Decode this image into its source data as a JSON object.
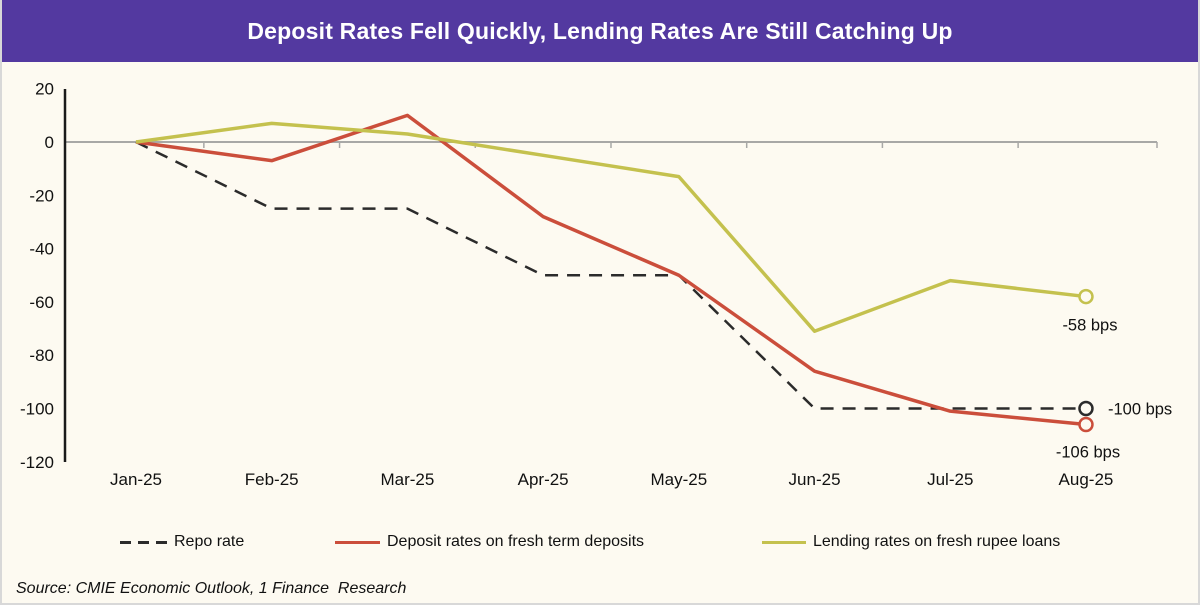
{
  "header": {
    "title": "Deposit Rates Fell Quickly, Lending Rates Are Still Catching Up"
  },
  "colors": {
    "banner_bg": "#5339A0",
    "banner_text": "#FFFFFF",
    "canvas_bg": "#FDFAF1",
    "axis_line": "#1A1A1A",
    "text": "#111111",
    "zero_line": "#A8A8A6",
    "frame_border": "#D8D8D8"
  },
  "chart_data": {
    "type": "line",
    "title": "Deposit Rates Fell Quickly, Lending Rates Are Still Catching Up",
    "unit": "bps (cumulative change)",
    "categories": [
      "Jan-25",
      "Feb-25",
      "Mar-25",
      "Apr-25",
      "May-25",
      "Jun-25",
      "Jul-25",
      "Aug-25"
    ],
    "series": [
      {
        "name": "Repo rate",
        "style": "dashed",
        "color": "#2B2B2B",
        "values": [
          0,
          -25,
          -25,
          -50,
          -50,
          -100,
          -100,
          -100
        ],
        "end_label": "-100 bps"
      },
      {
        "name": "Deposit rates on fresh term deposits",
        "style": "solid",
        "color": "#CB4E3B",
        "values": [
          0,
          -7,
          10,
          -28,
          -50,
          -86,
          -101,
          -106
        ],
        "end_label": "-106 bps"
      },
      {
        "name": "Lending rates on fresh rupee loans",
        "style": "solid",
        "color": "#C4C14E",
        "values": [
          0,
          7,
          3,
          -5,
          -13,
          -71,
          -52,
          -58
        ],
        "end_label": "-58 bps"
      }
    ],
    "y_ticks": [
      20,
      0,
      -20,
      -40,
      -60,
      -80,
      -100,
      -120
    ],
    "ylim": [
      -120,
      20
    ],
    "xlabel": "",
    "ylabel": "",
    "grid": "zero-line-only",
    "legend_position": "bottom"
  },
  "source": {
    "text": "Source: CMIE Economic Outlook, 1 Finance  Research"
  }
}
